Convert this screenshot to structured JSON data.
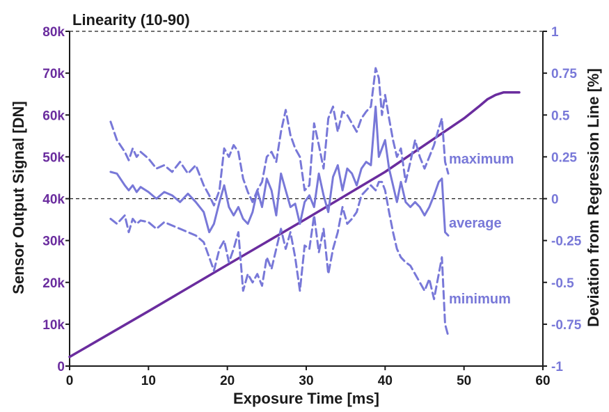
{
  "chart_data": {
    "type": "line",
    "title": "Linearity (10-90)",
    "xlabel": "Exposure Time [ms]",
    "ylabel_left": "Sensor Output Signal [DN]",
    "ylabel_right": "Deviation from Regression Line [%]",
    "xlim": [
      0,
      60
    ],
    "ylim_left": [
      0,
      80000
    ],
    "ylim_right": [
      -1,
      1
    ],
    "x_ticks": [
      "0",
      "10",
      "20",
      "30",
      "40",
      "50",
      "60"
    ],
    "y_left_ticks": [
      "0",
      "10k",
      "20k",
      "30k",
      "40k",
      "50k",
      "60k",
      "70k",
      "80k"
    ],
    "y_right_ticks": [
      "1",
      "0.75",
      "0.5",
      "0.25",
      "0",
      "-0.25",
      "-0.5",
      "-0.75",
      "-1"
    ],
    "grid": false,
    "colors": {
      "signal": "#6a2c9e",
      "deviation": "#7878d8",
      "axis": "#1a1a1a",
      "left_tick": "#6a2c9e",
      "right_tick": "#7878d8"
    },
    "series": [
      {
        "name": "",
        "axis": "left",
        "style": "solid",
        "x": [
          0,
          10,
          20,
          30,
          40,
          50,
          52,
          53,
          54,
          55,
          57
        ],
        "values": [
          2200,
          13100,
          24200,
          35200,
          46400,
          59200,
          62200,
          63800,
          64800,
          65400,
          65400
        ]
      },
      {
        "name": "maximum",
        "axis": "right",
        "style": "dashed",
        "x": [
          5.2,
          6,
          7,
          7.5,
          8,
          8.5,
          9,
          10,
          11,
          12,
          13,
          14,
          15,
          16,
          17,
          17.7,
          18.3,
          19,
          19.6,
          20.2,
          20.8,
          21.4,
          22,
          22.6,
          23.2,
          23.8,
          24.4,
          25,
          25.6,
          26.2,
          26.8,
          27.4,
          28,
          28.6,
          29.2,
          29.8,
          30.4,
          31,
          31.6,
          32.2,
          32.8,
          33.4,
          34,
          34.6,
          35.2,
          35.8,
          36.4,
          37,
          37.6,
          38.2,
          38.8,
          39.2,
          39.6,
          40,
          40.5,
          41,
          41.5,
          42,
          42.6,
          43.2,
          43.8,
          44.4,
          45,
          45.6,
          46.2,
          46.8,
          47.2,
          47.6,
          48
        ],
        "values": [
          0.46,
          0.35,
          0.28,
          0.23,
          0.3,
          0.25,
          0.28,
          0.24,
          0.18,
          0.2,
          0.16,
          0.22,
          0.15,
          0.2,
          0.08,
          0.02,
          -0.04,
          0.05,
          0.3,
          0.25,
          0.32,
          0.28,
          0.12,
          0.04,
          -0.02,
          0.05,
          0.1,
          0.25,
          0.28,
          0.22,
          0.4,
          0.53,
          0.38,
          0.3,
          0.25,
          0.05,
          0.08,
          0.45,
          0.32,
          0.18,
          0.48,
          0.55,
          0.4,
          0.52,
          0.5,
          0.45,
          0.4,
          0.48,
          0.52,
          0.55,
          0.78,
          0.72,
          0.5,
          0.62,
          0.48,
          0.35,
          0.25,
          0.3,
          0.1,
          0.22,
          0.35,
          0.25,
          0.18,
          0.25,
          0.32,
          0.42,
          0.48,
          0.22,
          0.15
        ]
      },
      {
        "name": "average",
        "axis": "right",
        "style": "solid",
        "x": [
          5.2,
          6,
          7,
          7.5,
          8,
          8.5,
          9,
          10,
          11,
          12,
          13,
          14,
          15,
          16,
          17,
          17.7,
          18.3,
          19,
          19.6,
          20.2,
          20.8,
          21.4,
          22,
          22.6,
          23.2,
          23.8,
          24.4,
          25,
          25.6,
          26.2,
          26.8,
          27.4,
          28,
          28.6,
          29.2,
          29.8,
          30.4,
          31,
          31.6,
          32.2,
          32.8,
          33.4,
          34,
          34.6,
          35.2,
          35.8,
          36.4,
          37,
          37.6,
          38.2,
          38.8,
          39.2,
          39.6,
          40,
          40.5,
          41,
          41.5,
          42,
          42.6,
          43.2,
          43.8,
          44.4,
          45,
          45.6,
          46.2,
          46.8,
          47.2,
          47.6,
          48
        ],
        "values": [
          0.16,
          0.15,
          0.08,
          0.05,
          0.08,
          0.04,
          0.07,
          0.04,
          0.0,
          0.04,
          0.02,
          -0.02,
          0.03,
          -0.02,
          -0.08,
          -0.2,
          -0.15,
          -0.02,
          0.08,
          -0.05,
          -0.1,
          -0.05,
          -0.12,
          -0.15,
          -0.08,
          0.05,
          -0.05,
          0.12,
          0.05,
          -0.1,
          0.15,
          0.05,
          -0.05,
          -0.03,
          -0.15,
          -0.02,
          0.02,
          -0.05,
          0.15,
          0.02,
          -0.08,
          0.13,
          0.2,
          0.05,
          0.18,
          0.15,
          0.08,
          0.18,
          0.22,
          0.2,
          0.55,
          0.25,
          0.3,
          0.35,
          0.18,
          0.08,
          -0.02,
          0.1,
          -0.02,
          -0.05,
          -0.02,
          -0.05,
          -0.1,
          -0.05,
          0.02,
          0.1,
          0.12,
          -0.2,
          -0.22
        ]
      },
      {
        "name": "minimum",
        "axis": "right",
        "style": "dashed",
        "x": [
          5.2,
          6,
          7,
          7.5,
          8,
          8.5,
          9,
          10,
          11,
          12,
          13,
          14,
          15,
          16,
          17,
          17.7,
          18.3,
          19,
          19.6,
          20.2,
          20.8,
          21.4,
          22,
          22.6,
          23.2,
          23.8,
          24.4,
          25,
          25.6,
          26.2,
          26.8,
          27.4,
          28,
          28.6,
          29.2,
          29.8,
          30.4,
          31,
          31.6,
          32.2,
          32.8,
          33.4,
          34,
          34.6,
          35.2,
          35.8,
          36.4,
          37,
          37.6,
          38.2,
          38.8,
          39.2,
          39.6,
          40,
          40.5,
          41,
          41.5,
          42,
          42.6,
          43.2,
          43.8,
          44.4,
          45,
          45.6,
          46.2,
          46.8,
          47.2,
          47.6,
          48
        ],
        "values": [
          -0.12,
          -0.15,
          -0.1,
          -0.2,
          -0.12,
          -0.15,
          -0.13,
          -0.14,
          -0.18,
          -0.14,
          -0.16,
          -0.18,
          -0.2,
          -0.22,
          -0.26,
          -0.35,
          -0.43,
          -0.3,
          -0.25,
          -0.38,
          -0.3,
          -0.2,
          -0.55,
          -0.45,
          -0.5,
          -0.45,
          -0.52,
          -0.35,
          -0.42,
          -0.3,
          -0.18,
          -0.3,
          -0.2,
          -0.35,
          -0.55,
          -0.28,
          -0.3,
          -0.1,
          -0.32,
          -0.18,
          -0.45,
          -0.3,
          -0.2,
          -0.05,
          -0.15,
          -0.12,
          -0.08,
          0.02,
          0.05,
          0.08,
          0.05,
          0.1,
          0.1,
          0.05,
          -0.08,
          -0.2,
          -0.3,
          -0.35,
          -0.38,
          -0.4,
          -0.45,
          -0.5,
          -0.55,
          -0.48,
          -0.6,
          -0.45,
          -0.35,
          -0.75,
          -0.82
        ]
      }
    ]
  }
}
